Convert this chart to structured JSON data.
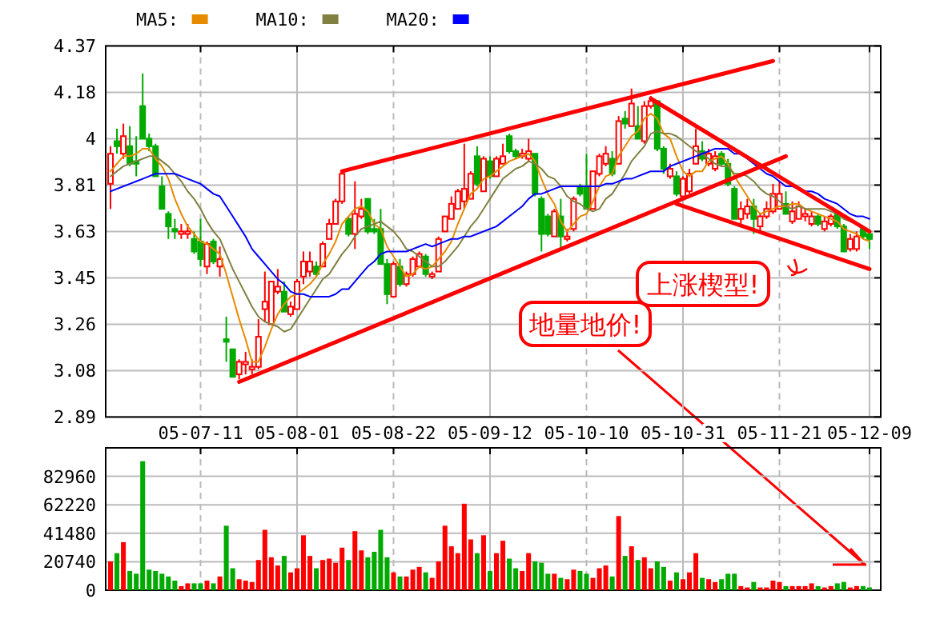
{
  "chart_data": [
    {
      "type": "candlestick",
      "categories": [
        null,
        null,
        null,
        null,
        null,
        null,
        null,
        null,
        null,
        null,
        null,
        null,
        null,
        null,
        "05-07-11",
        null,
        null,
        null,
        null,
        null,
        null,
        null,
        null,
        null,
        null,
        null,
        null,
        null,
        null,
        "05-08-01",
        null,
        null,
        null,
        null,
        null,
        null,
        null,
        null,
        null,
        null,
        null,
        null,
        null,
        null,
        "05-08-22",
        null,
        null,
        null,
        null,
        null,
        null,
        null,
        null,
        null,
        null,
        null,
        null,
        null,
        null,
        "05-09-12",
        null,
        null,
        null,
        null,
        null,
        null,
        null,
        null,
        null,
        null,
        null,
        null,
        null,
        null,
        "05-10-10",
        null,
        null,
        null,
        null,
        null,
        null,
        null,
        null,
        null,
        null,
        null,
        null,
        null,
        null,
        "05-10-31",
        null,
        null,
        null,
        null,
        null,
        null,
        null,
        null,
        null,
        null,
        null,
        null,
        null,
        null,
        "05-11-21",
        null,
        null,
        null,
        null,
        null,
        null,
        null,
        null,
        null,
        null,
        null,
        null,
        null,
        "05-12-09"
      ],
      "ohlc": [
        [
          3.82,
          3.97,
          3.72,
          3.94
        ],
        [
          3.99,
          4.04,
          3.94,
          3.97
        ],
        [
          3.94,
          4.06,
          3.92,
          4.01
        ],
        [
          3.97,
          4.05,
          3.89,
          3.9
        ],
        [
          3.91,
          4.01,
          3.85,
          3.9
        ],
        [
          4.13,
          4.26,
          4.0,
          4.0
        ],
        [
          4.0,
          4.02,
          3.95,
          3.97
        ],
        [
          3.97,
          3.98,
          3.85,
          3.85
        ],
        [
          3.81,
          3.85,
          3.72,
          3.72
        ],
        [
          3.7,
          3.71,
          3.6,
          3.65
        ],
        [
          3.64,
          3.68,
          3.6,
          3.63
        ],
        [
          3.62,
          3.66,
          3.6,
          3.63
        ],
        [
          3.62,
          3.66,
          3.6,
          3.63
        ],
        [
          3.6,
          3.63,
          3.54,
          3.55
        ],
        [
          3.59,
          3.68,
          3.49,
          3.52
        ],
        [
          3.49,
          3.59,
          3.46,
          3.58
        ],
        [
          3.59,
          3.6,
          3.5,
          3.51
        ],
        [
          3.49,
          3.57,
          3.45,
          3.52
        ],
        [
          3.2,
          3.29,
          3.11,
          3.19
        ],
        [
          3.16,
          3.16,
          3.05,
          3.05
        ],
        [
          3.06,
          3.12,
          3.04,
          3.11
        ],
        [
          3.1,
          3.15,
          3.06,
          3.11
        ],
        [
          3.08,
          3.12,
          3.06,
          3.09
        ],
        [
          3.09,
          3.28,
          3.08,
          3.21
        ],
        [
          3.32,
          3.47,
          3.27,
          3.35
        ],
        [
          3.26,
          3.43,
          3.26,
          3.43
        ],
        [
          3.39,
          3.48,
          3.38,
          3.41
        ],
        [
          3.39,
          3.43,
          3.31,
          3.31
        ],
        [
          3.3,
          3.35,
          3.29,
          3.33
        ],
        [
          3.32,
          3.44,
          3.32,
          3.43
        ],
        [
          3.45,
          3.55,
          3.42,
          3.51
        ],
        [
          3.47,
          3.55,
          3.45,
          3.51
        ],
        [
          3.49,
          3.51,
          3.45,
          3.46
        ],
        [
          3.49,
          3.59,
          3.49,
          3.58
        ],
        [
          3.6,
          3.68,
          3.6,
          3.66
        ],
        [
          3.66,
          3.76,
          3.66,
          3.75
        ],
        [
          3.75,
          3.87,
          3.74,
          3.86
        ],
        [
          3.68,
          3.69,
          3.61,
          3.62
        ],
        [
          3.62,
          3.83,
          3.56,
          3.7
        ],
        [
          3.69,
          3.76,
          3.68,
          3.72
        ],
        [
          3.76,
          3.76,
          3.62,
          3.63
        ],
        [
          3.64,
          3.68,
          3.62,
          3.63
        ],
        [
          3.64,
          3.72,
          3.5,
          3.5
        ],
        [
          3.5,
          3.52,
          3.34,
          3.38
        ],
        [
          3.37,
          3.51,
          3.37,
          3.5
        ],
        [
          3.49,
          3.52,
          3.41,
          3.42
        ],
        [
          3.42,
          3.47,
          3.41,
          3.46
        ],
        [
          3.46,
          3.53,
          3.45,
          3.52
        ],
        [
          3.49,
          3.55,
          3.49,
          3.54
        ],
        [
          3.53,
          3.54,
          3.45,
          3.46
        ],
        [
          3.45,
          3.47,
          3.44,
          3.46
        ],
        [
          3.47,
          3.61,
          3.47,
          3.6
        ],
        [
          3.63,
          3.69,
          3.63,
          3.69
        ],
        [
          3.68,
          3.77,
          3.68,
          3.74
        ],
        [
          3.72,
          3.8,
          3.72,
          3.79
        ],
        [
          3.75,
          3.98,
          3.72,
          3.8
        ],
        [
          3.76,
          3.87,
          3.76,
          3.86
        ],
        [
          3.93,
          3.97,
          3.81,
          3.82
        ],
        [
          3.79,
          3.93,
          3.79,
          3.92
        ],
        [
          3.91,
          3.93,
          3.84,
          3.85
        ],
        [
          3.85,
          3.93,
          3.85,
          3.92
        ],
        [
          3.9,
          3.98,
          3.9,
          3.93
        ],
        [
          4.01,
          4.02,
          3.94,
          3.95
        ],
        [
          3.95,
          3.96,
          3.92,
          3.93
        ],
        [
          3.93,
          3.96,
          3.92,
          3.94
        ],
        [
          3.92,
          4.0,
          3.91,
          3.95
        ],
        [
          3.94,
          3.94,
          3.77,
          3.78
        ],
        [
          3.76,
          3.77,
          3.55,
          3.62
        ],
        [
          3.69,
          3.7,
          3.61,
          3.62
        ],
        [
          3.61,
          3.72,
          3.61,
          3.71
        ],
        [
          3.69,
          3.76,
          3.56,
          3.61
        ],
        [
          3.6,
          3.64,
          3.59,
          3.61
        ],
        [
          3.64,
          3.77,
          3.63,
          3.76
        ],
        [
          3.81,
          3.82,
          3.77,
          3.78
        ],
        [
          3.81,
          3.94,
          3.72,
          3.72
        ],
        [
          3.72,
          3.87,
          3.72,
          3.87
        ],
        [
          3.86,
          3.94,
          3.85,
          3.93
        ],
        [
          3.9,
          3.97,
          3.89,
          3.94
        ],
        [
          3.92,
          3.95,
          3.85,
          3.86
        ],
        [
          3.9,
          4.09,
          3.9,
          4.07
        ],
        [
          4.08,
          4.11,
          4.04,
          4.06
        ],
        [
          4.05,
          4.2,
          4.05,
          4.14
        ],
        [
          4.05,
          4.13,
          4.0,
          4.0
        ],
        [
          3.99,
          4.15,
          3.98,
          4.13
        ],
        [
          4.13,
          4.17,
          4.12,
          4.15
        ],
        [
          4.15,
          4.15,
          3.95,
          3.96
        ],
        [
          3.96,
          3.97,
          3.86,
          3.88
        ],
        [
          3.85,
          3.9,
          3.84,
          3.88
        ],
        [
          3.85,
          3.87,
          3.77,
          3.78
        ],
        [
          3.77,
          3.85,
          3.76,
          3.84
        ],
        [
          3.79,
          3.88,
          3.78,
          3.86
        ],
        [
          3.9,
          4.04,
          3.9,
          3.97
        ],
        [
          3.95,
          3.99,
          3.91,
          3.92
        ],
        [
          3.9,
          3.96,
          3.89,
          3.94
        ],
        [
          3.88,
          3.95,
          3.87,
          3.93
        ],
        [
          3.94,
          3.95,
          3.89,
          3.9
        ],
        [
          3.9,
          3.92,
          3.81,
          3.82
        ],
        [
          3.8,
          3.81,
          3.68,
          3.68
        ],
        [
          3.68,
          3.75,
          3.65,
          3.72
        ],
        [
          3.7,
          3.76,
          3.68,
          3.73
        ],
        [
          3.73,
          3.76,
          3.62,
          3.68
        ],
        [
          3.65,
          3.7,
          3.63,
          3.69
        ],
        [
          3.69,
          3.75,
          3.68,
          3.72
        ],
        [
          3.71,
          3.82,
          3.7,
          3.78
        ],
        [
          3.72,
          3.83,
          3.72,
          3.78
        ],
        [
          3.74,
          3.79,
          3.7,
          3.7
        ],
        [
          3.67,
          3.75,
          3.66,
          3.71
        ],
        [
          3.68,
          3.75,
          3.68,
          3.73
        ],
        [
          3.69,
          3.72,
          3.67,
          3.7
        ],
        [
          3.66,
          3.71,
          3.65,
          3.69
        ],
        [
          3.69,
          3.7,
          3.65,
          3.66
        ],
        [
          3.64,
          3.69,
          3.63,
          3.67
        ],
        [
          3.66,
          3.7,
          3.65,
          3.69
        ],
        [
          3.7,
          3.71,
          3.64,
          3.65
        ],
        [
          3.65,
          3.66,
          3.55,
          3.55
        ],
        [
          3.56,
          3.62,
          3.55,
          3.6
        ],
        [
          3.56,
          3.63,
          3.55,
          3.61
        ],
        [
          3.64,
          3.65,
          3.6,
          3.61
        ],
        [
          3.62,
          3.63,
          3.56,
          3.6
        ]
      ],
      "series": [
        {
          "name": "MA5:",
          "type": "line",
          "color": "#e68a00",
          "values": [
            3.87,
            3.9,
            3.93,
            3.93,
            3.94,
            3.96,
            3.96,
            3.92,
            3.89,
            3.84,
            3.76,
            3.7,
            3.65,
            3.62,
            3.59,
            3.58,
            3.56,
            3.54,
            3.46,
            3.37,
            3.28,
            3.2,
            3.11,
            3.11,
            3.17,
            3.24,
            3.3,
            3.34,
            3.37,
            3.38,
            3.4,
            3.42,
            3.45,
            3.5,
            3.54,
            3.59,
            3.66,
            3.69,
            3.72,
            3.73,
            3.71,
            3.66,
            3.64,
            3.57,
            3.53,
            3.49,
            3.45,
            3.46,
            3.49,
            3.48,
            3.49,
            3.52,
            3.55,
            3.59,
            3.66,
            3.72,
            3.78,
            3.8,
            3.84,
            3.85,
            3.87,
            3.89,
            3.91,
            3.92,
            3.93,
            3.94,
            3.91,
            3.84,
            3.78,
            3.74,
            3.67,
            3.63,
            3.66,
            3.69,
            3.7,
            3.75,
            3.81,
            3.85,
            3.86,
            3.93,
            3.97,
            4.01,
            4.03,
            4.08,
            4.1,
            4.08,
            4.02,
            4.0,
            3.93,
            3.87,
            3.85,
            3.87,
            3.87,
            3.91,
            3.92,
            3.93,
            3.9,
            3.85,
            3.81,
            3.77,
            3.73,
            3.7,
            3.71,
            3.72,
            3.73,
            3.73,
            3.74,
            3.74,
            3.72,
            3.71,
            3.7,
            3.69,
            3.68,
            3.67,
            3.64,
            3.63,
            3.62,
            3.6,
            3.59
          ]
        },
        {
          "name": "MA10:",
          "type": "line",
          "color": "#808040",
          "values": [
            3.85,
            3.87,
            3.89,
            3.9,
            3.91,
            3.92,
            3.93,
            3.93,
            3.91,
            3.89,
            3.86,
            3.83,
            3.79,
            3.76,
            3.72,
            3.67,
            3.63,
            3.6,
            3.54,
            3.48,
            3.43,
            3.38,
            3.33,
            3.29,
            3.27,
            3.26,
            3.25,
            3.23,
            3.24,
            3.28,
            3.32,
            3.36,
            3.4,
            3.44,
            3.46,
            3.5,
            3.54,
            3.57,
            3.61,
            3.64,
            3.65,
            3.66,
            3.67,
            3.65,
            3.63,
            3.6,
            3.56,
            3.55,
            3.53,
            3.51,
            3.49,
            3.49,
            3.51,
            3.54,
            3.57,
            3.61,
            3.65,
            3.68,
            3.72,
            3.76,
            3.8,
            3.84,
            3.86,
            3.88,
            3.89,
            3.91,
            3.9,
            3.88,
            3.85,
            3.84,
            3.81,
            3.77,
            3.75,
            3.74,
            3.72,
            3.71,
            3.72,
            3.76,
            3.78,
            3.82,
            3.86,
            3.91,
            3.94,
            3.97,
            4.02,
            4.03,
            4.02,
            4.02,
            4.01,
            3.99,
            3.97,
            3.95,
            3.94,
            3.92,
            3.9,
            3.89,
            3.89,
            3.86,
            3.86,
            3.85,
            3.83,
            3.8,
            3.78,
            3.77,
            3.75,
            3.73,
            3.72,
            3.73,
            3.72,
            3.72,
            3.72,
            3.72,
            3.71,
            3.7,
            3.68,
            3.67,
            3.66,
            3.64,
            3.63
          ]
        },
        {
          "name": "MA20:",
          "type": "line",
          "color": "#0000ff",
          "values": [
            3.79,
            3.8,
            3.81,
            3.82,
            3.83,
            3.84,
            3.85,
            3.86,
            3.86,
            3.86,
            3.86,
            3.85,
            3.84,
            3.83,
            3.82,
            3.8,
            3.78,
            3.77,
            3.73,
            3.69,
            3.65,
            3.61,
            3.56,
            3.53,
            3.5,
            3.47,
            3.44,
            3.42,
            3.39,
            3.38,
            3.38,
            3.37,
            3.37,
            3.37,
            3.37,
            3.38,
            3.4,
            3.4,
            3.43,
            3.46,
            3.49,
            3.51,
            3.54,
            3.55,
            3.55,
            3.55,
            3.55,
            3.56,
            3.57,
            3.58,
            3.57,
            3.58,
            3.59,
            3.6,
            3.6,
            3.61,
            3.61,
            3.62,
            3.63,
            3.64,
            3.65,
            3.67,
            3.69,
            3.71,
            3.73,
            3.76,
            3.78,
            3.78,
            3.79,
            3.8,
            3.81,
            3.81,
            3.81,
            3.81,
            3.81,
            3.81,
            3.81,
            3.82,
            3.82,
            3.83,
            3.84,
            3.84,
            3.85,
            3.86,
            3.87,
            3.87,
            3.87,
            3.89,
            3.9,
            3.91,
            3.92,
            3.93,
            3.94,
            3.95,
            3.96,
            3.96,
            3.96,
            3.94,
            3.94,
            3.92,
            3.9,
            3.88,
            3.86,
            3.85,
            3.83,
            3.81,
            3.81,
            3.8,
            3.79,
            3.79,
            3.78,
            3.76,
            3.75,
            3.74,
            3.72,
            3.7,
            3.69,
            3.69,
            3.68
          ]
        },
        {
          "type": "line",
          "color": "#ff0000",
          "values": [
            null,
            null,
            null,
            null,
            null,
            null,
            null,
            null,
            null,
            null,
            null,
            null,
            null,
            null,
            null,
            null,
            null,
            null,
            null,
            null,
            3.03,
            null,
            null,
            null,
            null,
            null,
            null,
            null,
            null,
            null,
            null,
            null,
            null,
            null,
            null,
            null,
            null,
            null,
            null,
            null,
            null,
            null,
            null,
            null,
            null,
            null,
            null,
            null,
            null,
            null,
            null,
            null,
            null,
            null,
            null,
            null,
            null,
            null,
            null,
            null,
            null,
            null,
            null,
            null,
            null,
            null,
            null,
            null,
            null,
            null,
            null,
            null,
            null,
            null,
            null,
            null,
            null,
            null,
            null,
            null,
            null,
            null,
            null,
            null,
            null,
            null,
            null,
            null,
            null,
            null,
            null,
            null,
            null,
            null,
            null,
            null,
            null,
            null,
            null,
            null,
            null,
            null,
            null,
            null,
            null,
            3.93,
            null,
            null,
            null,
            null,
            null,
            null,
            null,
            null,
            null,
            null,
            null,
            null,
            null
          ]
        },
        {
          "type": "line",
          "color": "#ff0000",
          "values": [
            null,
            null,
            null,
            null,
            null,
            null,
            null,
            null,
            null,
            null,
            null,
            null,
            null,
            null,
            null,
            null,
            null,
            null,
            null,
            null,
            null,
            null,
            null,
            null,
            null,
            null,
            null,
            null,
            null,
            null,
            null,
            null,
            null,
            null,
            null,
            null,
            3.87,
            null,
            null,
            null,
            null,
            null,
            null,
            null,
            null,
            null,
            null,
            null,
            null,
            null,
            null,
            null,
            null,
            null,
            null,
            null,
            null,
            null,
            null,
            null,
            null,
            null,
            null,
            null,
            null,
            null,
            null,
            null,
            null,
            null,
            null,
            null,
            null,
            null,
            null,
            null,
            null,
            null,
            null,
            null,
            null,
            null,
            null,
            null,
            null,
            null,
            null,
            null,
            null,
            null,
            null,
            null,
            null,
            null,
            null,
            null,
            null,
            null,
            null,
            null,
            null,
            null,
            null,
            4.31,
            null,
            null,
            null,
            null,
            null,
            null,
            null,
            null,
            null,
            null,
            null,
            null,
            null,
            null,
            null
          ]
        },
        {
          "type": "line",
          "color": "#ff0000",
          "values": [
            null,
            null,
            null,
            null,
            null,
            null,
            null,
            null,
            null,
            null,
            null,
            null,
            null,
            null,
            null,
            null,
            null,
            null,
            null,
            null,
            null,
            null,
            null,
            null,
            null,
            null,
            null,
            null,
            null,
            null,
            null,
            null,
            null,
            null,
            null,
            null,
            null,
            null,
            null,
            null,
            null,
            null,
            null,
            null,
            null,
            null,
            null,
            null,
            null,
            null,
            null,
            null,
            null,
            null,
            null,
            null,
            null,
            null,
            null,
            null,
            null,
            null,
            null,
            null,
            null,
            null,
            null,
            null,
            null,
            null,
            null,
            null,
            null,
            null,
            null,
            null,
            null,
            null,
            null,
            null,
            null,
            null,
            null,
            null,
            4.16,
            null,
            null,
            null,
            null,
            null,
            null,
            null,
            null,
            null,
            null,
            null,
            null,
            null,
            null,
            null,
            null,
            null,
            null,
            null,
            null,
            null,
            null,
            null,
            null,
            null,
            null,
            null,
            null,
            null,
            null,
            null,
            null,
            null,
            3.63
          ]
        },
        {
          "type": "line",
          "color": "#ff0000",
          "values": [
            null,
            null,
            null,
            null,
            null,
            null,
            null,
            null,
            null,
            null,
            null,
            null,
            null,
            null,
            null,
            null,
            null,
            null,
            null,
            null,
            null,
            null,
            null,
            null,
            null,
            null,
            null,
            null,
            null,
            null,
            null,
            null,
            null,
            null,
            null,
            null,
            null,
            null,
            null,
            null,
            null,
            null,
            null,
            null,
            null,
            null,
            null,
            null,
            null,
            null,
            null,
            null,
            null,
            null,
            null,
            null,
            null,
            null,
            null,
            null,
            null,
            null,
            null,
            null,
            null,
            null,
            null,
            null,
            null,
            null,
            null,
            null,
            null,
            null,
            null,
            null,
            null,
            null,
            null,
            null,
            null,
            null,
            null,
            null,
            null,
            null,
            null,
            null,
            3.74,
            null,
            null,
            null,
            null,
            null,
            null,
            null,
            null,
            null,
            null,
            null,
            null,
            null,
            null,
            null,
            null,
            null,
            null,
            null,
            null,
            null,
            null,
            null,
            null,
            null,
            null,
            null,
            null,
            null,
            3.48
          ]
        }
      ],
      "ylim": [
        2.89,
        4.37
      ],
      "yticks": [
        2.89,
        {
          "value": 3.075,
          "label": "3.08"
        },
        3.26,
        {
          "value": 3.445,
          "label": "3.45"
        },
        3.63,
        {
          "value": 3.815,
          "label": "3.81"
        },
        4.0,
        {
          "value": 4.185,
          "label": "4.18"
        },
        4.37
      ],
      "grid": true,
      "legend": "top left",
      "annotations": [
        "上涨楔型!",
        "地量地价!"
      ]
    },
    {
      "type": "bar",
      "categories": [
        null,
        null,
        null,
        null,
        null,
        null,
        null,
        null,
        null,
        null,
        null,
        null,
        null,
        null,
        null,
        null,
        null,
        null,
        null,
        null,
        null,
        null,
        null,
        null,
        null,
        null,
        null,
        null,
        null,
        null,
        null,
        null,
        null,
        null,
        null,
        null,
        null,
        null,
        null,
        null,
        null,
        null,
        null,
        null,
        null,
        null,
        null,
        null,
        null,
        null,
        null,
        null,
        null,
        null,
        null,
        null,
        null,
        null,
        null,
        null,
        null,
        null,
        null,
        null,
        null,
        null,
        null,
        null,
        null,
        null,
        null,
        null,
        null,
        null,
        null,
        null,
        null,
        null,
        null,
        null,
        null,
        null,
        null,
        null,
        null,
        null,
        null,
        null,
        null,
        null,
        null,
        null,
        null,
        null,
        null,
        null,
        null,
        null,
        null,
        null,
        null,
        null,
        null,
        null,
        null,
        null,
        null,
        null,
        null,
        null,
        null,
        null,
        null,
        null,
        null,
        null,
        null,
        null,
        null
      ],
      "values": [
        21000,
        27000,
        35000,
        14000,
        12000,
        94000,
        15000,
        14000,
        12000,
        10000,
        7000,
        3000,
        5000,
        5000,
        5000,
        7000,
        5000,
        10000,
        47000,
        16000,
        8000,
        7000,
        6000,
        22000,
        44000,
        24000,
        18000,
        25000,
        13000,
        16000,
        40000,
        25000,
        16000,
        22000,
        23000,
        20000,
        31000,
        22000,
        43000,
        29000,
        24000,
        28000,
        44000,
        24000,
        13000,
        10000,
        10000,
        15000,
        17000,
        13000,
        9000,
        21000,
        47000,
        32000,
        27000,
        63000,
        37000,
        27000,
        40000,
        14000,
        27000,
        36000,
        23000,
        16000,
        14000,
        27000,
        21000,
        20000,
        12000,
        12000,
        9000,
        8000,
        15000,
        14000,
        12000,
        9000,
        16000,
        18000,
        10000,
        54000,
        25000,
        32000,
        22000,
        24000,
        16000,
        21000,
        17000,
        7000,
        13000,
        8000,
        13000,
        27000,
        9000,
        8000,
        6000,
        8000,
        12000,
        12000,
        3000,
        2000,
        6000,
        2000,
        2000,
        7000,
        6000,
        3000,
        3000,
        3000,
        3000,
        5000,
        3000,
        2000,
        3000,
        5000,
        6000,
        2000,
        3000,
        3000,
        2000
      ],
      "colors": [
        "#ff0000",
        "#00aa00",
        "#ff0000",
        "#00aa00",
        "#00aa00",
        "#00aa00",
        "#00aa00",
        "#00aa00",
        "#00aa00",
        "#00aa00",
        "#00aa00",
        "#ff0000",
        "#ff0000",
        "#00aa00",
        "#00aa00",
        "#ff0000",
        "#00aa00",
        "#ff0000",
        "#00aa00",
        "#00aa00",
        "#ff0000",
        "#ff0000",
        "#ff0000",
        "#ff0000",
        "#ff0000",
        "#ff0000",
        "#ff0000",
        "#00aa00",
        "#ff0000",
        "#ff0000",
        "#ff0000",
        "#ff0000",
        "#00aa00",
        "#ff0000",
        "#ff0000",
        "#ff0000",
        "#ff0000",
        "#00aa00",
        "#ff0000",
        "#ff0000",
        "#00aa00",
        "#00aa00",
        "#00aa00",
        "#00aa00",
        "#ff0000",
        "#00aa00",
        "#ff0000",
        "#ff0000",
        "#ff0000",
        "#00aa00",
        "#ff0000",
        "#ff0000",
        "#ff0000",
        "#ff0000",
        "#ff0000",
        "#ff0000",
        "#ff0000",
        "#00aa00",
        "#ff0000",
        "#00aa00",
        "#ff0000",
        "#ff0000",
        "#00aa00",
        "#00aa00",
        "#ff0000",
        "#ff0000",
        "#00aa00",
        "#00aa00",
        "#00aa00",
        "#ff0000",
        "#00aa00",
        "#ff0000",
        "#ff0000",
        "#00aa00",
        "#00aa00",
        "#ff0000",
        "#ff0000",
        "#ff0000",
        "#00aa00",
        "#ff0000",
        "#00aa00",
        "#ff0000",
        "#00aa00",
        "#ff0000",
        "#ff0000",
        "#00aa00",
        "#00aa00",
        "#ff0000",
        "#00aa00",
        "#ff0000",
        "#ff0000",
        "#ff0000",
        "#00aa00",
        "#ff0000",
        "#ff0000",
        "#00aa00",
        "#00aa00",
        "#00aa00",
        "#ff0000",
        "#ff0000",
        "#00aa00",
        "#ff0000",
        "#ff0000",
        "#ff0000",
        "#ff0000",
        "#00aa00",
        "#ff0000",
        "#ff0000",
        "#ff0000",
        "#ff0000",
        "#00aa00",
        "#ff0000",
        "#ff0000",
        "#00aa00",
        "#00aa00",
        "#ff0000",
        "#ff0000",
        "#00aa00",
        "#00aa00"
      ],
      "ylim": [
        0,
        103700
      ],
      "yticks": [
        0,
        20740,
        41480,
        62220,
        82960
      ],
      "grid": true,
      "tick_labels": "y"
    }
  ]
}
